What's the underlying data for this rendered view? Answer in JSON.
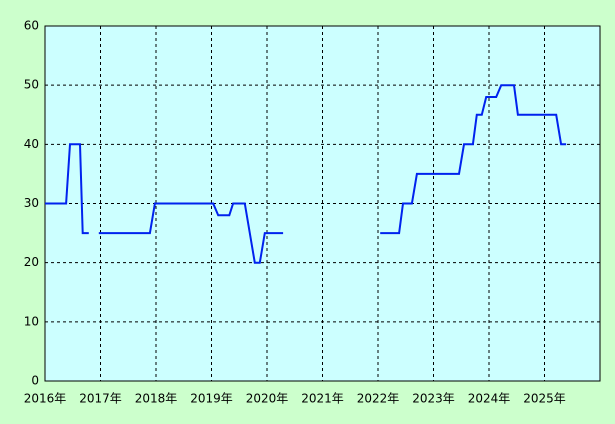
{
  "chart_data": {
    "type": "line",
    "x": [
      2016.0,
      2016.38,
      2016.45,
      2016.63,
      2016.68,
      2016.79,
      2016.9,
      2016.97,
      2017.89,
      2017.98,
      2019.03,
      2019.12,
      2019.32,
      2019.39,
      2019.6,
      2019.78,
      2019.87,
      2019.96,
      2020.29,
      2021.0,
      2022.04,
      2022.38,
      2022.45,
      2022.61,
      2022.7,
      2023.46,
      2023.55,
      2023.71,
      2023.78,
      2023.87,
      2023.95,
      2024.13,
      2024.22,
      2024.45,
      2024.52,
      2025.21,
      2025.3,
      2025.39
    ],
    "values": [
      30,
      30,
      40,
      40,
      25,
      25,
      null,
      25,
      25,
      30,
      30,
      28,
      28,
      30,
      30,
      20,
      20,
      25,
      25,
      null,
      25,
      25,
      30,
      30,
      35,
      35,
      40,
      40,
      45,
      45,
      48,
      48,
      50,
      50,
      45,
      45,
      40,
      40
    ],
    "color": "#0022ee",
    "xlim": [
      2016,
      2026
    ],
    "xticks": [
      {
        "value": 2016,
        "label": "2016年"
      },
      {
        "value": 2017,
        "label": "2017年"
      },
      {
        "value": 2018,
        "label": "2018年"
      },
      {
        "value": 2019,
        "label": "2019年"
      },
      {
        "value": 2020,
        "label": "2020年"
      },
      {
        "value": 2021,
        "label": "2021年"
      },
      {
        "value": 2022,
        "label": "2022年"
      },
      {
        "value": 2023,
        "label": "2023年"
      },
      {
        "value": 2024,
        "label": "2024年"
      },
      {
        "value": 2025,
        "label": "2025年"
      }
    ],
    "ylim": [
      0,
      60
    ],
    "yticks": [
      0,
      10,
      20,
      30,
      40,
      50,
      60
    ],
    "grid": true
  }
}
